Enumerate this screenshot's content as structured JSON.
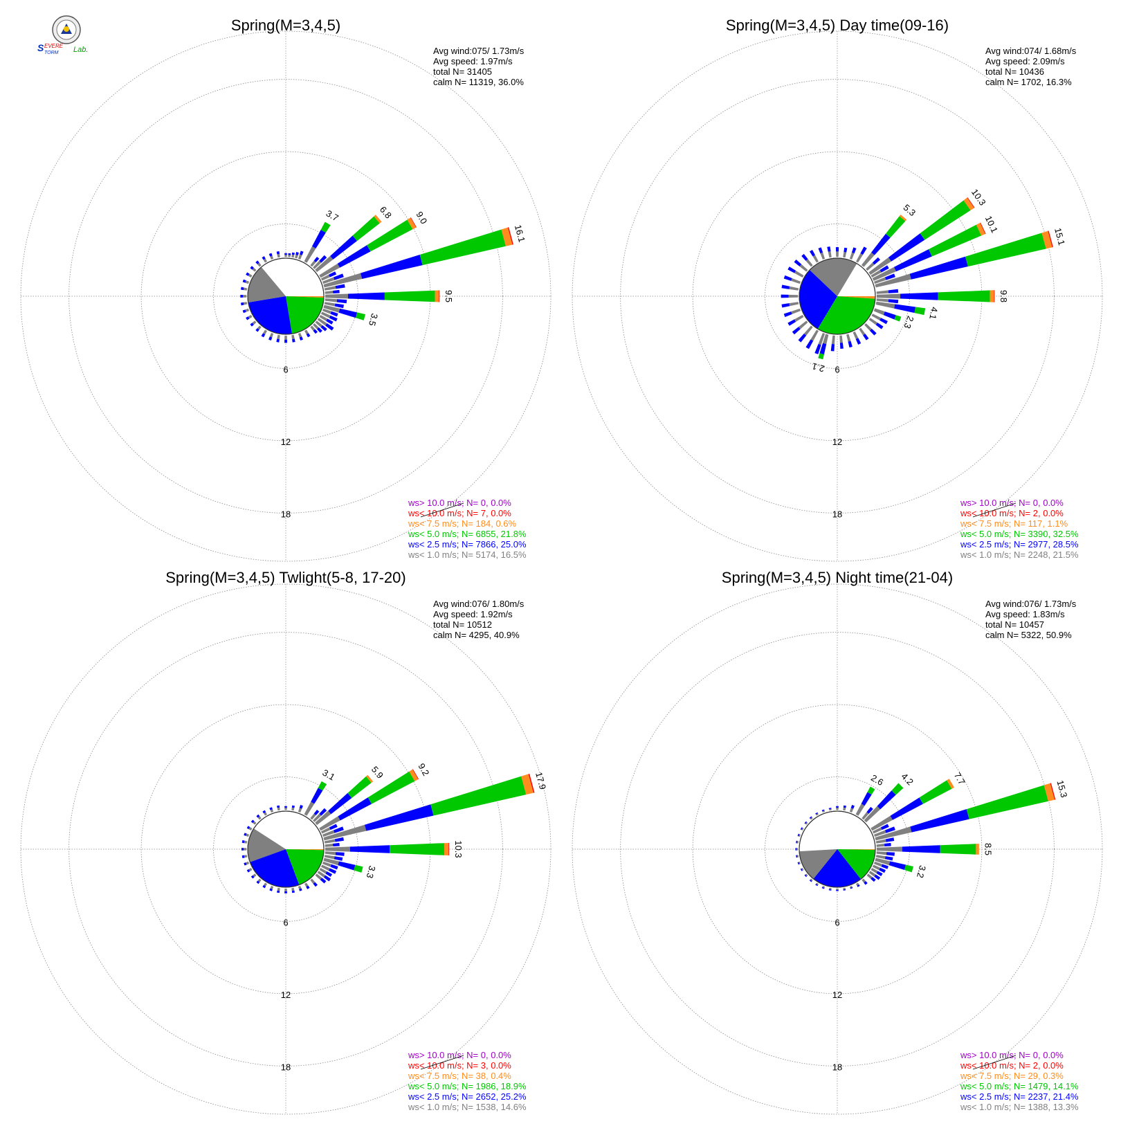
{
  "logo": {
    "text_s": "S",
    "text_evere": "EVERE",
    "text_torm": "TORM",
    "text_lab": "Lab."
  },
  "colors": {
    "ws_gt_10": "#a000c8",
    "ws_lt_10": "#ff0000",
    "ws_lt_7_5": "#ff8c1e",
    "ws_lt_5": "#00c800",
    "ws_lt_2_5": "#0000ff",
    "ws_lt_1": "#808080",
    "grid": "#888888"
  },
  "chart_data": [
    {
      "type": "wind-rose",
      "title": "Spring(M=3,4,5)",
      "ring_labels": [
        "6",
        "12",
        "18"
      ],
      "stats": [
        "Avg wind:075/ 1.73m/s",
        "Avg speed: 1.97m/s",
        "total N=      31405",
        "calm N=  11319,  36.0%"
      ],
      "legend": [
        "ws> 10.0 m/s; N=     0,  0.0%",
        "ws< 10.0 m/s; N=     7,  0.0%",
        "ws<  7.5 m/s; N=   184,  0.6%",
        "ws<  5.0 m/s; N=  6855, 21.8%",
        "ws<  2.5 m/s; N=  7866, 25.0%",
        "ws<  1.0 m/s; N=  5174, 16.5%"
      ],
      "calm_pie": {
        "ws_lt_1": 16.5,
        "ws_lt_2_5": 25.0,
        "ws_lt_5": 21.8,
        "ws_lt_7_5": 0.6,
        "ws_lt_10": 0.0,
        "ws_gt_10": 0.0
      },
      "petals": [
        {
          "dir": 30,
          "total": 3.7,
          "label": "3.7"
        },
        {
          "dir": 50,
          "total": 6.8,
          "label": "6.8"
        },
        {
          "dir": 60,
          "total": 9.0,
          "label": "9.0"
        },
        {
          "dir": 75,
          "total": 16.1,
          "label": "16.1"
        },
        {
          "dir": 90,
          "total": 9.5,
          "label": "9.5"
        },
        {
          "dir": 105,
          "total": 3.5,
          "label": "3.5"
        },
        {
          "dir": 45,
          "total": 1.4
        },
        {
          "dir": 40,
          "total": 0.9
        },
        {
          "dir": 20,
          "total": 0.7
        },
        {
          "dir": 15,
          "total": 0.5
        },
        {
          "dir": 10,
          "total": 0.4
        },
        {
          "dir": 5,
          "total": 0.3
        },
        {
          "dir": 0,
          "total": 0.3
        },
        {
          "dir": 65,
          "total": 1.3
        },
        {
          "dir": 70,
          "total": 1.8
        },
        {
          "dir": 80,
          "total": 1.7
        },
        {
          "dir": 85,
          "total": 1.2
        },
        {
          "dir": 95,
          "total": 1.8
        },
        {
          "dir": 100,
          "total": 1.6
        },
        {
          "dir": 110,
          "total": 1.3
        },
        {
          "dir": 115,
          "total": 1.4
        },
        {
          "dir": 120,
          "total": 1.2
        },
        {
          "dir": 125,
          "total": 1.5
        },
        {
          "dir": 130,
          "total": 1.1
        },
        {
          "dir": 135,
          "total": 0.9
        },
        {
          "dir": 140,
          "total": 0.7
        },
        {
          "dir": 150,
          "total": 0.6
        },
        {
          "dir": 160,
          "total": 0.6
        },
        {
          "dir": 170,
          "total": 0.6
        },
        {
          "dir": 180,
          "total": 0.6
        },
        {
          "dir": 190,
          "total": 0.6
        },
        {
          "dir": 200,
          "total": 0.6
        },
        {
          "dir": 210,
          "total": 0.6
        },
        {
          "dir": 220,
          "total": 0.5
        },
        {
          "dir": 230,
          "total": 0.5
        },
        {
          "dir": 240,
          "total": 0.5
        },
        {
          "dir": 250,
          "total": 0.5
        },
        {
          "dir": 260,
          "total": 0.5
        },
        {
          "dir": 270,
          "total": 0.5
        },
        {
          "dir": 280,
          "total": 0.5
        },
        {
          "dir": 290,
          "total": 0.5
        },
        {
          "dir": 300,
          "total": 0.5
        },
        {
          "dir": 310,
          "total": 0.5
        },
        {
          "dir": 320,
          "total": 0.5
        },
        {
          "dir": 330,
          "total": 0.5
        },
        {
          "dir": 340,
          "total": 0.5
        },
        {
          "dir": 350,
          "total": 0.5
        }
      ]
    },
    {
      "type": "wind-rose",
      "title": "Spring(M=3,4,5) Day time(09-16)",
      "ring_labels": [
        "6",
        "12",
        "18"
      ],
      "stats": [
        "Avg wind:074/ 1.68m/s",
        "Avg speed: 2.09m/s",
        "total N=      10436",
        "calm N=  1702,  16.3%"
      ],
      "legend": [
        "ws> 10.0 m/s; N=     0,  0.0%",
        "ws< 10.0 m/s; N=     2,  0.0%",
        "ws<  7.5 m/s; N=   117,  1.1%",
        "ws<  5.0 m/s; N=  3390, 32.5%",
        "ws<  2.5 m/s; N=  2977, 28.5%",
        "ws<  1.0 m/s; N=  2248, 21.5%"
      ],
      "calm_pie": {
        "ws_lt_1": 21.5,
        "ws_lt_2_5": 28.5,
        "ws_lt_5": 32.5,
        "ws_lt_7_5": 1.1,
        "ws_lt_10": 0.0,
        "ws_gt_10": 0.0
      },
      "petals": [
        {
          "dir": 40,
          "total": 5.3,
          "label": "5.3"
        },
        {
          "dir": 55,
          "total": 10.3,
          "label": "10.3"
        },
        {
          "dir": 65,
          "total": 10.1,
          "label": "10.1"
        },
        {
          "dir": 75,
          "total": 15.1,
          "label": "15.1"
        },
        {
          "dir": 90,
          "total": 9.8,
          "label": "9.8"
        },
        {
          "dir": 100,
          "total": 4.1,
          "label": "4.1"
        },
        {
          "dir": 110,
          "total": 2.3,
          "label": "2.3"
        },
        {
          "dir": 195,
          "total": 2.1,
          "label": "2.1"
        },
        {
          "dir": 30,
          "total": 1.4
        },
        {
          "dir": 20,
          "total": 1.0
        },
        {
          "dir": 10,
          "total": 0.8
        },
        {
          "dir": 0,
          "total": 0.8
        },
        {
          "dir": 350,
          "total": 0.9
        },
        {
          "dir": 340,
          "total": 1.0
        },
        {
          "dir": 330,
          "total": 1.1
        },
        {
          "dir": 320,
          "total": 1.2
        },
        {
          "dir": 310,
          "total": 1.3
        },
        {
          "dir": 300,
          "total": 1.4
        },
        {
          "dir": 290,
          "total": 1.4
        },
        {
          "dir": 280,
          "total": 1.4
        },
        {
          "dir": 270,
          "total": 1.4
        },
        {
          "dir": 260,
          "total": 1.4
        },
        {
          "dir": 250,
          "total": 1.4
        },
        {
          "dir": 240,
          "total": 1.4
        },
        {
          "dir": 230,
          "total": 1.5
        },
        {
          "dir": 220,
          "total": 1.6
        },
        {
          "dir": 210,
          "total": 1.7
        },
        {
          "dir": 200,
          "total": 1.8
        },
        {
          "dir": 185,
          "total": 1.3
        },
        {
          "dir": 175,
          "total": 1.1
        },
        {
          "dir": 165,
          "total": 1.1
        },
        {
          "dir": 155,
          "total": 1.1
        },
        {
          "dir": 145,
          "total": 1.1
        },
        {
          "dir": 135,
          "total": 1.2
        },
        {
          "dir": 125,
          "total": 1.3
        },
        {
          "dir": 118,
          "total": 1.4
        },
        {
          "dir": 95,
          "total": 1.8
        },
        {
          "dir": 85,
          "total": 1.8
        },
        {
          "dir": 70,
          "total": 1.8
        },
        {
          "dir": 60,
          "total": 1.6
        },
        {
          "dir": 48,
          "total": 1.4
        }
      ]
    },
    {
      "type": "wind-rose",
      "title": "Spring(M=3,4,5) Twlight(5-8, 17-20)",
      "ring_labels": [
        "6",
        "12",
        "18"
      ],
      "stats": [
        "Avg wind:076/ 1.80m/s",
        "Avg speed: 1.92m/s",
        "total N=      10512",
        "calm N=  4295,  40.9%"
      ],
      "legend": [
        "ws> 10.0 m/s; N=     0,  0.0%",
        "ws< 10.0 m/s; N=     3,  0.0%",
        "ws<  7.5 m/s; N=    38,  0.4%",
        "ws<  5.0 m/s; N=  1986, 18.9%",
        "ws<  2.5 m/s; N=  2652, 25.2%",
        "ws<  1.0 m/s; N=  1538, 14.6%"
      ],
      "calm_pie": {
        "ws_lt_1": 14.6,
        "ws_lt_2_5": 25.2,
        "ws_lt_5": 18.9,
        "ws_lt_7_5": 0.4,
        "ws_lt_10": 0.0,
        "ws_gt_10": 0.0
      },
      "petals": [
        {
          "dir": 30,
          "total": 3.1,
          "label": "3.1"
        },
        {
          "dir": 50,
          "total": 5.9,
          "label": "5.9"
        },
        {
          "dir": 60,
          "total": 9.2,
          "label": "9.2"
        },
        {
          "dir": 75,
          "total": 17.9,
          "label": "17.9"
        },
        {
          "dir": 90,
          "total": 10.3,
          "label": "10.3"
        },
        {
          "dir": 105,
          "total": 3.3,
          "label": "3.3"
        },
        {
          "dir": 45,
          "total": 1.4
        },
        {
          "dir": 40,
          "total": 0.9
        },
        {
          "dir": 20,
          "total": 0.6
        },
        {
          "dir": 10,
          "total": 0.4
        },
        {
          "dir": 0,
          "total": 0.3
        },
        {
          "dir": 65,
          "total": 1.4
        },
        {
          "dir": 70,
          "total": 1.8
        },
        {
          "dir": 80,
          "total": 1.6
        },
        {
          "dir": 85,
          "total": 1.2
        },
        {
          "dir": 95,
          "total": 1.6
        },
        {
          "dir": 100,
          "total": 1.5
        },
        {
          "dir": 110,
          "total": 1.3
        },
        {
          "dir": 115,
          "total": 1.3
        },
        {
          "dir": 120,
          "total": 1.1
        },
        {
          "dir": 125,
          "total": 1.2
        },
        {
          "dir": 130,
          "total": 1.0
        },
        {
          "dir": 140,
          "total": 0.7
        },
        {
          "dir": 150,
          "total": 0.5
        },
        {
          "dir": 160,
          "total": 0.4
        },
        {
          "dir": 170,
          "total": 0.4
        },
        {
          "dir": 180,
          "total": 0.4
        },
        {
          "dir": 190,
          "total": 0.4
        },
        {
          "dir": 200,
          "total": 0.4
        },
        {
          "dir": 210,
          "total": 0.4
        },
        {
          "dir": 220,
          "total": 0.4
        },
        {
          "dir": 230,
          "total": 0.4
        },
        {
          "dir": 240,
          "total": 0.4
        },
        {
          "dir": 250,
          "total": 0.4
        },
        {
          "dir": 260,
          "total": 0.4
        },
        {
          "dir": 270,
          "total": 0.4
        },
        {
          "dir": 280,
          "total": 0.4
        },
        {
          "dir": 290,
          "total": 0.4
        },
        {
          "dir": 300,
          "total": 0.4
        },
        {
          "dir": 310,
          "total": 0.4
        },
        {
          "dir": 320,
          "total": 0.4
        },
        {
          "dir": 330,
          "total": 0.4
        },
        {
          "dir": 340,
          "total": 0.4
        },
        {
          "dir": 350,
          "total": 0.4
        }
      ]
    },
    {
      "type": "wind-rose",
      "title": "Spring(M=3,4,5) Night time(21-04)",
      "ring_labels": [
        "6",
        "12",
        "18"
      ],
      "stats": [
        "Avg wind:076/ 1.73m/s",
        "Avg speed: 1.83m/s",
        "total N=      10457",
        "calm N=  5322,  50.9%"
      ],
      "legend": [
        "ws> 10.0 m/s; N=     0,  0.0%",
        "ws< 10.0 m/s; N=     2,  0.0%",
        "ws<  7.5 m/s; N=    29,  0.3%",
        "ws<  5.0 m/s; N=  1479, 14.1%",
        "ws<  2.5 m/s; N=  2237, 21.4%",
        "ws<  1.0 m/s; N=  1388, 13.3%"
      ],
      "calm_pie": {
        "ws_lt_1": 13.3,
        "ws_lt_2_5": 21.4,
        "ws_lt_5": 14.1,
        "ws_lt_7_5": 0.3,
        "ws_lt_10": 0.0,
        "ws_gt_10": 0.0
      },
      "petals": [
        {
          "dir": 30,
          "total": 2.6,
          "label": "2.6"
        },
        {
          "dir": 45,
          "total": 4.2,
          "label": "4.2"
        },
        {
          "dir": 60,
          "total": 7.7,
          "label": "7.7"
        },
        {
          "dir": 75,
          "total": 15.3,
          "label": "15.3"
        },
        {
          "dir": 90,
          "total": 8.5,
          "label": "8.5"
        },
        {
          "dir": 105,
          "total": 3.2,
          "label": "3.2"
        },
        {
          "dir": 40,
          "total": 1.2
        },
        {
          "dir": 20,
          "total": 0.6
        },
        {
          "dir": 10,
          "total": 0.4
        },
        {
          "dir": 0,
          "total": 0.3
        },
        {
          "dir": 65,
          "total": 1.4
        },
        {
          "dir": 70,
          "total": 1.8
        },
        {
          "dir": 80,
          "total": 1.5
        },
        {
          "dir": 85,
          "total": 1.2
        },
        {
          "dir": 95,
          "total": 1.5
        },
        {
          "dir": 100,
          "total": 1.4
        },
        {
          "dir": 110,
          "total": 1.2
        },
        {
          "dir": 115,
          "total": 1.1
        },
        {
          "dir": 120,
          "total": 1.0
        },
        {
          "dir": 125,
          "total": 1.0
        },
        {
          "dir": 130,
          "total": 0.8
        },
        {
          "dir": 140,
          "total": 0.5
        },
        {
          "dir": 150,
          "total": 0.3
        },
        {
          "dir": 160,
          "total": 0.2
        },
        {
          "dir": 170,
          "total": 0.2
        },
        {
          "dir": 180,
          "total": 0.2
        },
        {
          "dir": 190,
          "total": 0.2
        },
        {
          "dir": 200,
          "total": 0.2
        },
        {
          "dir": 210,
          "total": 0.2
        },
        {
          "dir": 220,
          "total": 0.2
        },
        {
          "dir": 230,
          "total": 0.2
        },
        {
          "dir": 240,
          "total": 0.2
        },
        {
          "dir": 250,
          "total": 0.2
        },
        {
          "dir": 260,
          "total": 0.2
        },
        {
          "dir": 270,
          "total": 0.2
        },
        {
          "dir": 280,
          "total": 0.2
        },
        {
          "dir": 290,
          "total": 0.2
        },
        {
          "dir": 300,
          "total": 0.2
        },
        {
          "dir": 310,
          "total": 0.2
        },
        {
          "dir": 320,
          "total": 0.2
        },
        {
          "dir": 330,
          "total": 0.2
        },
        {
          "dir": 340,
          "total": 0.2
        },
        {
          "dir": 350,
          "total": 0.2
        }
      ]
    }
  ]
}
